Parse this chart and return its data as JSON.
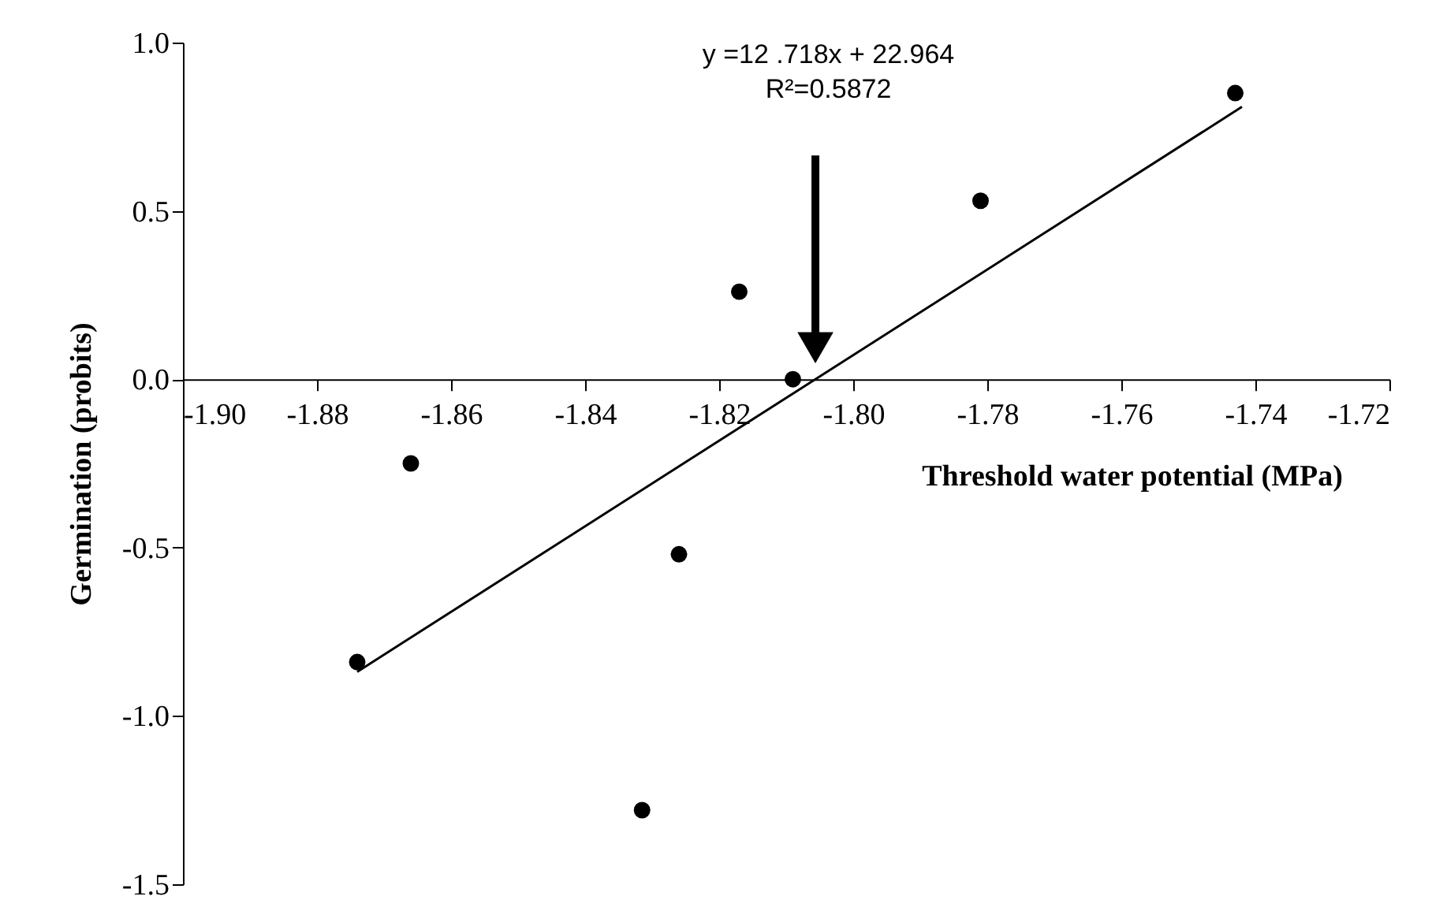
{
  "chart_data": {
    "type": "scatter",
    "xlabel": "Threshold water potential (MPa)",
    "ylabel": "Germination (probits)",
    "xlim": [
      -1.9,
      -1.72
    ],
    "xticks": [
      {
        "value": -1.9,
        "label": "-1.90"
      },
      -1.88,
      -1.86,
      -1.84,
      -1.82,
      {
        "value": -1.8,
        "label": "-1.80"
      },
      -1.78,
      -1.76,
      -1.74,
      -1.72
    ],
    "ylim": [
      -1.5,
      1.0
    ],
    "yticks": [
      {
        "value": -1.5,
        "label": "-1.5"
      },
      {
        "value": -1.0,
        "label": "-1.0"
      },
      {
        "value": -0.5,
        "label": "-0.5"
      },
      {
        "value": 0,
        "label": "0.0"
      },
      {
        "value": 0.5,
        "label": "0.5"
      },
      {
        "value": 1.0,
        "label": "1.0"
      }
    ],
    "grid": false,
    "marker": "circle",
    "series": [
      {
        "color": "#000000",
        "x": [
          -1.874,
          -1.866,
          -1.8315,
          -1.826,
          -1.817,
          -1.809,
          -1.781,
          -1.743
        ],
        "values": [
          -0.84,
          -0.25,
          -1.28,
          -0.52,
          0.26,
          0.0,
          0.53,
          0.85
        ]
      },
      {
        "type": "line",
        "marker": "none",
        "color": "#000000",
        "x": [
          -1.874,
          -1.742
        ],
        "values": [
          -0.869,
          0.809
        ]
      }
    ],
    "annotations": [
      "y =12 .718x + 22.964",
      "R²=0.5872"
    ]
  }
}
